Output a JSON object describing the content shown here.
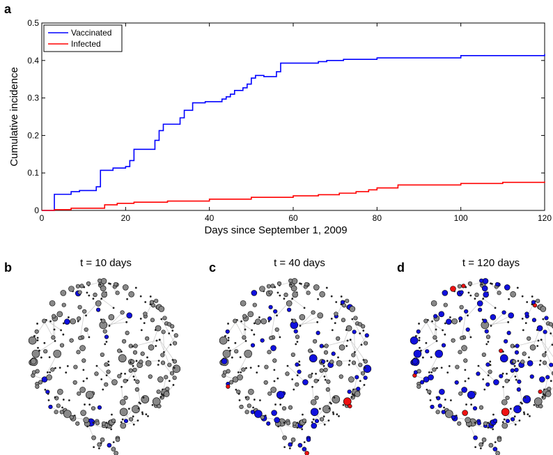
{
  "panel_a": {
    "letter": "a",
    "chart_data": {
      "type": "line",
      "step": true,
      "xlabel": "Days since September 1, 2009",
      "ylabel": "Cumulative incidence",
      "xlim": [
        0,
        120
      ],
      "ylim": [
        0,
        0.5
      ],
      "xticks": [
        0,
        20,
        40,
        60,
        80,
        100,
        120
      ],
      "yticks": [
        0,
        0.1,
        0.2,
        0.3,
        0.4,
        0.5
      ],
      "ytick_labels": [
        "0",
        "0.1",
        "0.2",
        "0.3",
        "0.4",
        "0.5"
      ],
      "grid": false,
      "legend_position": "top-left",
      "series": [
        {
          "name": "Vaccinated",
          "color": "#0000ff",
          "x": [
            0,
            3,
            7,
            9,
            13,
            14,
            17,
            20,
            21,
            22,
            27,
            28,
            29,
            33,
            34,
            36,
            39,
            43,
            44,
            45,
            46,
            48,
            49,
            50,
            51,
            53,
            56,
            57,
            66,
            68,
            72,
            80,
            100,
            120
          ],
          "y": [
            0,
            0.043,
            0.05,
            0.053,
            0.063,
            0.107,
            0.113,
            0.117,
            0.133,
            0.163,
            0.187,
            0.213,
            0.23,
            0.247,
            0.267,
            0.287,
            0.29,
            0.297,
            0.303,
            0.31,
            0.32,
            0.327,
            0.337,
            0.353,
            0.36,
            0.357,
            0.37,
            0.393,
            0.397,
            0.4,
            0.403,
            0.407,
            0.413,
            0.417
          ]
        },
        {
          "name": "Infected",
          "color": "#ff0000",
          "x": [
            0,
            3,
            7,
            15,
            18,
            22,
            30,
            40,
            50,
            60,
            66,
            71,
            75,
            78,
            80,
            85,
            100,
            110,
            120
          ],
          "y": [
            0,
            0.002,
            0.006,
            0.015,
            0.019,
            0.022,
            0.025,
            0.03,
            0.035,
            0.039,
            0.042,
            0.046,
            0.05,
            0.055,
            0.06,
            0.068,
            0.072,
            0.075,
            0.077
          ]
        }
      ]
    }
  },
  "panels": [
    {
      "letter": "b",
      "title": "t = 10 days",
      "seed": 17,
      "blue_fraction": 0.05,
      "red_fraction": 0.0
    },
    {
      "letter": "c",
      "title": "t  = 40 days",
      "seed": 29,
      "blue_fraction": 0.3,
      "red_fraction": 0.02
    },
    {
      "letter": "d",
      "title": "t = 120 days",
      "seed": 41,
      "blue_fraction": 0.45,
      "red_fraction": 0.06
    }
  ],
  "colors": {
    "node_gray": "#888888",
    "node_blue": "#1010dd",
    "node_red": "#ee1111",
    "node_small": "#222222",
    "edge": "#cccccc"
  }
}
